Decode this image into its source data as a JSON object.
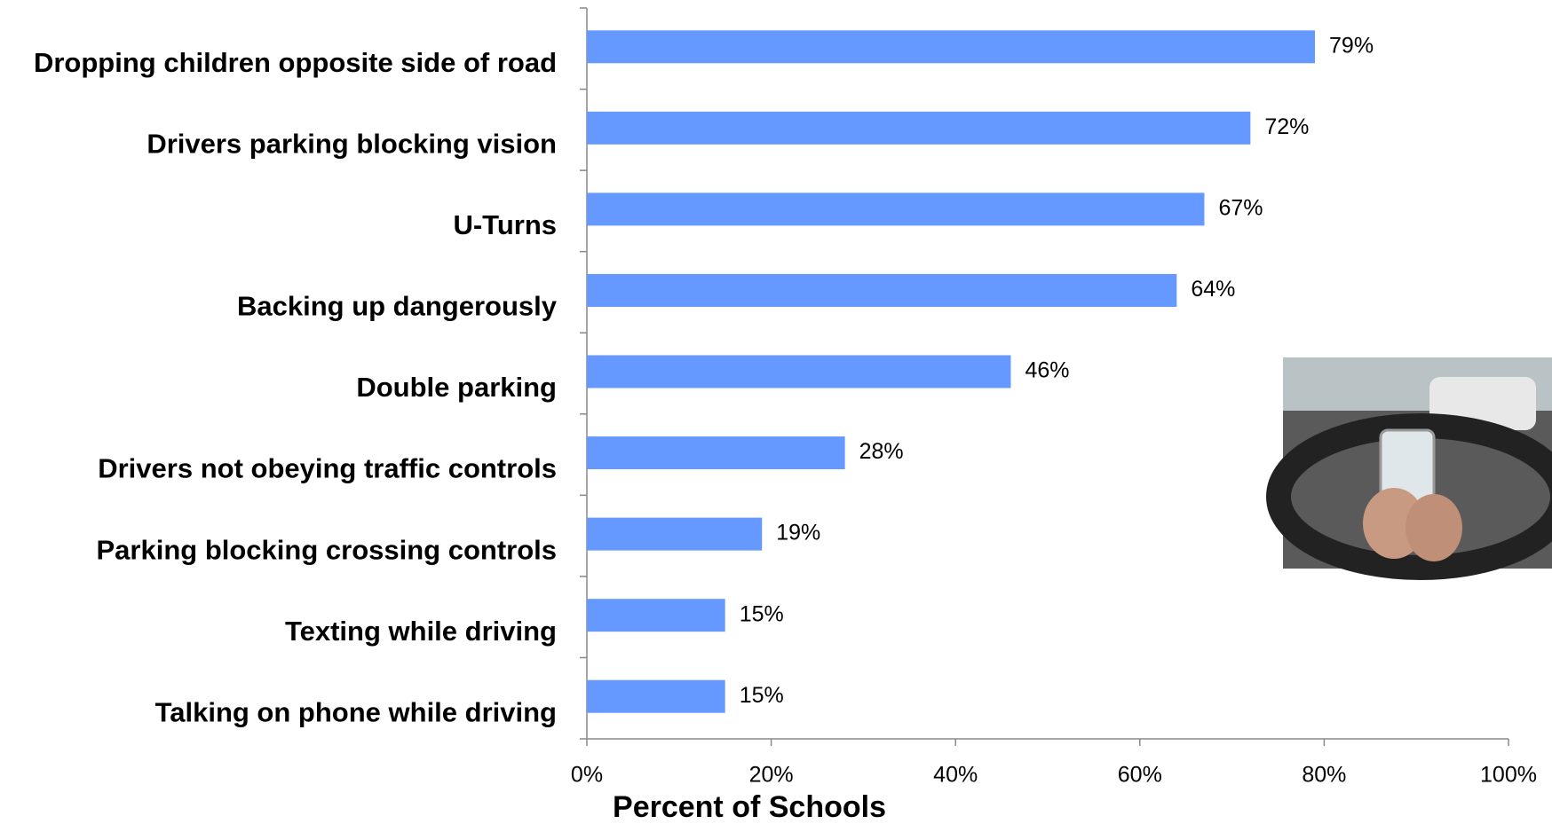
{
  "chart_data": {
    "type": "bar",
    "orientation": "horizontal",
    "x_label": "Percent of Schools",
    "categories": [
      "Dropping children opposite side of road",
      "Drivers parking blocking vision",
      "U-Turns",
      "Backing up dangerously",
      "Double parking",
      "Drivers not obeying traffic controls",
      "Parking blocking crossing controls",
      "Texting while driving",
      "Talking on phone while driving"
    ],
    "values": [
      79,
      72,
      67,
      64,
      46,
      28,
      19,
      15,
      15
    ],
    "value_labels": [
      "79%",
      "72%",
      "67%",
      "64%",
      "46%",
      "28%",
      "19%",
      "15%",
      "15%"
    ],
    "color": "#6699ff",
    "xlim": [
      0,
      100
    ],
    "xticks": [
      {
        "value": 0,
        "label": "0%"
      },
      {
        "value": 20,
        "label": "20%"
      },
      {
        "value": 40,
        "label": "40%"
      },
      {
        "value": 60,
        "label": "60%"
      },
      {
        "value": 80,
        "label": "80%"
      },
      {
        "value": 100,
        "label": "100%"
      }
    ],
    "grid": false
  }
}
